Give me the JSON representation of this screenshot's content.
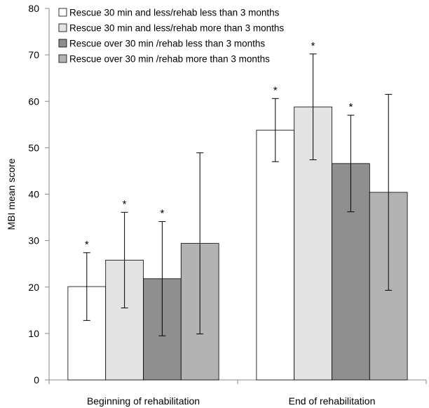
{
  "chart_data": {
    "type": "bar",
    "title": "",
    "xlabel": "",
    "ylabel": "MBI mean score",
    "ylim": [
      0,
      80
    ],
    "yticks": [
      0,
      10,
      20,
      30,
      40,
      50,
      60,
      70,
      80
    ],
    "grid": false,
    "legend_position": "top-left",
    "categories": [
      "Beginning of rehabilitation",
      "End of rehabilitation"
    ],
    "series": [
      {
        "name": "Rescue 30 min and less/rehab less than 3 months",
        "color": "#ffffff",
        "values": [
          20.1,
          53.8
        ],
        "error_low": [
          12.8,
          47.0
        ],
        "error_high": [
          27.4,
          60.6
        ],
        "significant": [
          true,
          true
        ]
      },
      {
        "name": "Rescue 30 min and less/rehab more than 3 months",
        "color": "#e3e3e3",
        "values": [
          25.8,
          58.8
        ],
        "error_low": [
          15.5,
          47.4
        ],
        "error_high": [
          36.1,
          70.2
        ],
        "significant": [
          true,
          true
        ]
      },
      {
        "name": "Rescue over 30 min /rehab less than 3 months",
        "color": "#8f8f8f",
        "values": [
          21.8,
          46.6
        ],
        "error_low": [
          9.5,
          36.2
        ],
        "error_high": [
          34.1,
          57.0
        ],
        "significant": [
          true,
          true
        ]
      },
      {
        "name": "Rescue over 30 min /rehab more than 3 months",
        "color": "#b3b3b3",
        "values": [
          29.4,
          40.4
        ],
        "error_low": [
          9.9,
          19.3
        ],
        "error_high": [
          48.9,
          61.5
        ],
        "significant": [
          false,
          false
        ]
      }
    ],
    "significance_marker": "*"
  }
}
